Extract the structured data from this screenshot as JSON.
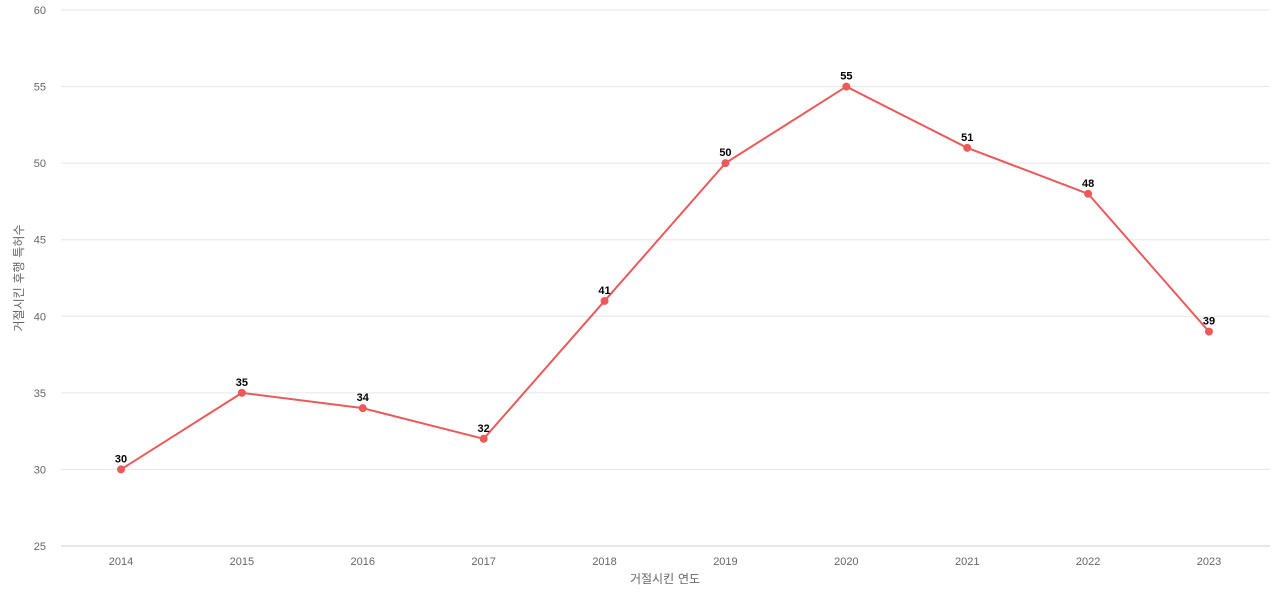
{
  "chart_data": {
    "type": "line",
    "title": "",
    "xlabel": "거절시킨 연도",
    "ylabel": "거절시킨 후행 특허수",
    "x": [
      "2014",
      "2015",
      "2016",
      "2017",
      "2018",
      "2019",
      "2020",
      "2021",
      "2022",
      "2023"
    ],
    "series": [
      {
        "values": [
          30,
          35,
          34,
          32,
          41,
          50,
          55,
          51,
          48,
          39
        ],
        "color": "#ea5a5a"
      }
    ],
    "ylim": [
      25,
      60
    ],
    "yticks": [
      25,
      30,
      35,
      40,
      45,
      50,
      55,
      60
    ],
    "grid": true,
    "data_labels": true,
    "legend": "none"
  }
}
